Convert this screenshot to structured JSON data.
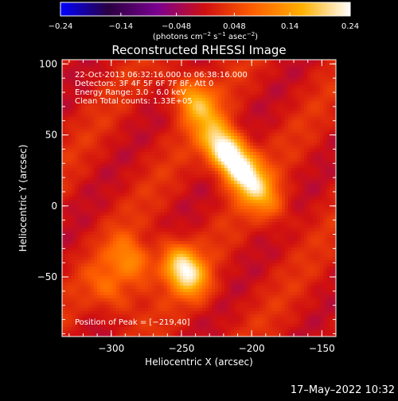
{
  "chart_data": {
    "type": "heatmap",
    "title": "Reconstructed RHESSI Image",
    "xlabel": "Heliocentric X (arcsec)",
    "ylabel": "Heliocentric Y (arcsec)",
    "xlim": [
      -335,
      -140
    ],
    "ylim": [
      -92,
      103
    ],
    "xticks": [
      -300,
      -250,
      -200,
      -150
    ],
    "xtick_labels": [
      "−300",
      "−250",
      "−200",
      "−150"
    ],
    "yticks": [
      -50,
      0,
      50,
      100
    ],
    "ytick_labels": [
      "−50",
      "0",
      "50",
      "100"
    ],
    "colorbar": {
      "range": [
        -0.24,
        0.24
      ],
      "ticks": [
        -0.24,
        -0.14,
        -0.048,
        0.048,
        0.14,
        0.24
      ],
      "tick_labels": [
        "−0.24",
        "−0.14",
        "−0.048",
        "0.048",
        "0.14",
        "0.24"
      ],
      "units_label": "(photons cm",
      "units_exp1": "−2",
      "units_mid": " s",
      "units_exp2": "−1",
      "units_end": " asec",
      "units_exp3": "−2",
      "units_close": ")",
      "colormap": [
        "#0000ff",
        "#2a0040",
        "#7a0090",
        "#d01010",
        "#ff6000",
        "#ffb000",
        "#ffffff"
      ]
    },
    "annotations": [
      "22-Oct-2013 06:32:16.000 to 06:38:16.000",
      "Detectors: 3F 4F 5F 6F 7F 8F, Att 0",
      "Energy Range: 3.0 - 6.0 keV",
      "Clean    Total counts: 1.33E+05"
    ],
    "peak_label": "Position of Peak = [−219,40]",
    "peak": {
      "x": -219,
      "y": 40
    },
    "sources": [
      {
        "x": -219,
        "y": 40,
        "value": 0.24
      },
      {
        "x": -205,
        "y": 22,
        "value": 0.18
      },
      {
        "x": -240,
        "y": 73,
        "value": 0.15
      },
      {
        "x": -248,
        "y": -45,
        "value": 0.22
      },
      {
        "x": -285,
        "y": -40,
        "value": 0.12
      },
      {
        "x": -300,
        "y": -60,
        "value": 0.08
      },
      {
        "x": -190,
        "y": 5,
        "value": 0.08
      }
    ]
  },
  "footer": {
    "timestamp": "17–May–2022 10:32"
  }
}
